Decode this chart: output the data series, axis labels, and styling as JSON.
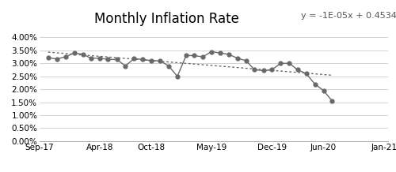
{
  "title": "Monthly Inflation Rate",
  "trendline_eq": "y = -1E-05x + 0.4534",
  "x_tick_labels": [
    "Sep-17",
    "Apr-18",
    "Oct-18",
    "May-19",
    "Dec-19",
    "Jun-20",
    "Jan-21"
  ],
  "data_points": [
    3.22,
    3.17,
    3.25,
    3.4,
    3.35,
    3.2,
    3.2,
    3.15,
    3.15,
    2.9,
    3.18,
    3.15,
    3.1,
    3.1,
    2.9,
    2.5,
    3.3,
    3.3,
    3.25,
    3.45,
    3.4,
    3.35,
    3.2,
    3.1,
    2.75,
    2.72,
    2.75,
    3.0,
    3.0,
    2.75,
    2.6,
    2.2,
    1.95,
    1.55
  ],
  "line_color": "#696969",
  "trend_color": "#696969",
  "background_color": "#ffffff",
  "grid_color": "#cccccc",
  "title_fontsize": 12,
  "annotation_fontsize": 8,
  "ylim": [
    0.0,
    0.0425
  ],
  "figsize": [
    5.0,
    2.18
  ],
  "dpi": 100
}
